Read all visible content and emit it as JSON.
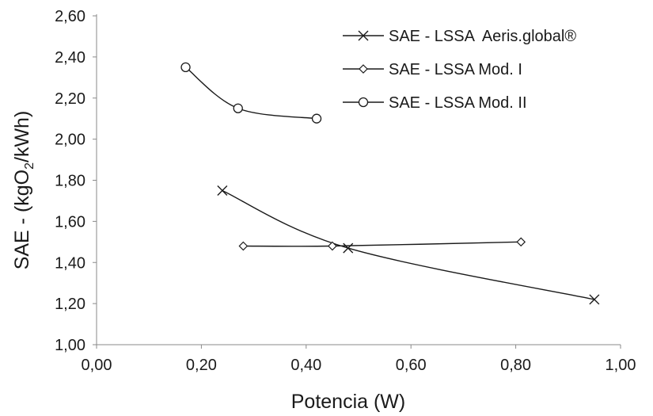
{
  "chart_data": {
    "type": "scatter",
    "xlabel": "Potencia (W)",
    "ylabel": "SAE - (kgO2/kWh)",
    "xlim": [
      0,
      1
    ],
    "ylim": [
      1,
      2.6
    ],
    "x_ticks": [
      "0,00",
      "0,20",
      "0,40",
      "0,60",
      "0,80",
      "1,00"
    ],
    "y_ticks": [
      "1,00",
      "1,20",
      "1,40",
      "1,60",
      "1,80",
      "2,00",
      "2,20",
      "2,40",
      "2,60"
    ],
    "grid": false,
    "legend_position": "top-right",
    "series": [
      {
        "name": "SAE - LSSA  Aeris.global®",
        "marker": "x",
        "color": "#1a1a1a",
        "x": [
          0.24,
          0.48,
          0.95
        ],
        "y": [
          1.75,
          1.47,
          1.22
        ]
      },
      {
        "name": "SAE - LSSA Mod. I",
        "marker": "diamond",
        "color": "#1a1a1a",
        "x": [
          0.28,
          0.45,
          0.81
        ],
        "y": [
          1.48,
          1.48,
          1.5
        ]
      },
      {
        "name": "SAE - LSSA Mod. II",
        "marker": "circle",
        "color": "#1a1a1a",
        "x": [
          0.17,
          0.27,
          0.42
        ],
        "y": [
          2.35,
          2.15,
          2.1
        ]
      }
    ]
  }
}
